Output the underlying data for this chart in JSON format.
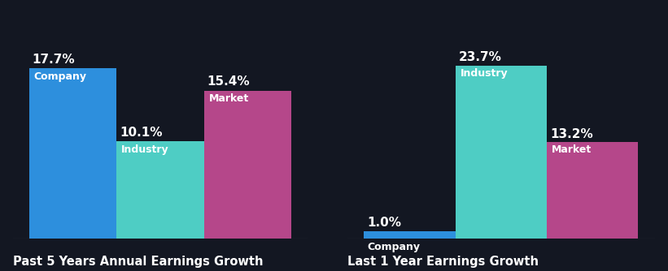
{
  "background_color": "#131722",
  "groups": [
    {
      "title": "Past 5 Years Annual Earnings Growth",
      "bars": [
        {
          "label": "Company",
          "value": 17.7,
          "color": "#2d8fdd"
        },
        {
          "label": "Industry",
          "value": 10.1,
          "color": "#4ecdc4"
        },
        {
          "label": "Market",
          "value": 15.4,
          "color": "#b5478a"
        }
      ]
    },
    {
      "title": "Last 1 Year Earnings Growth",
      "bars": [
        {
          "label": "Company",
          "value": 1.0,
          "color": "#2d8fdd"
        },
        {
          "label": "Industry",
          "value": 23.7,
          "color": "#4ecdc4"
        },
        {
          "label": "Market",
          "value": 13.2,
          "color": "#b5478a"
        }
      ]
    }
  ],
  "bar_width": 0.28,
  "bar_gap": 0.0,
  "title_fontsize": 10.5,
  "label_fontsize": 9,
  "value_fontsize": 11,
  "title_color": "#ffffff",
  "label_color": "#ffffff",
  "value_color": "#ffffff",
  "ylim_left": [
    0,
    22
  ],
  "ylim_right": [
    0,
    29
  ]
}
